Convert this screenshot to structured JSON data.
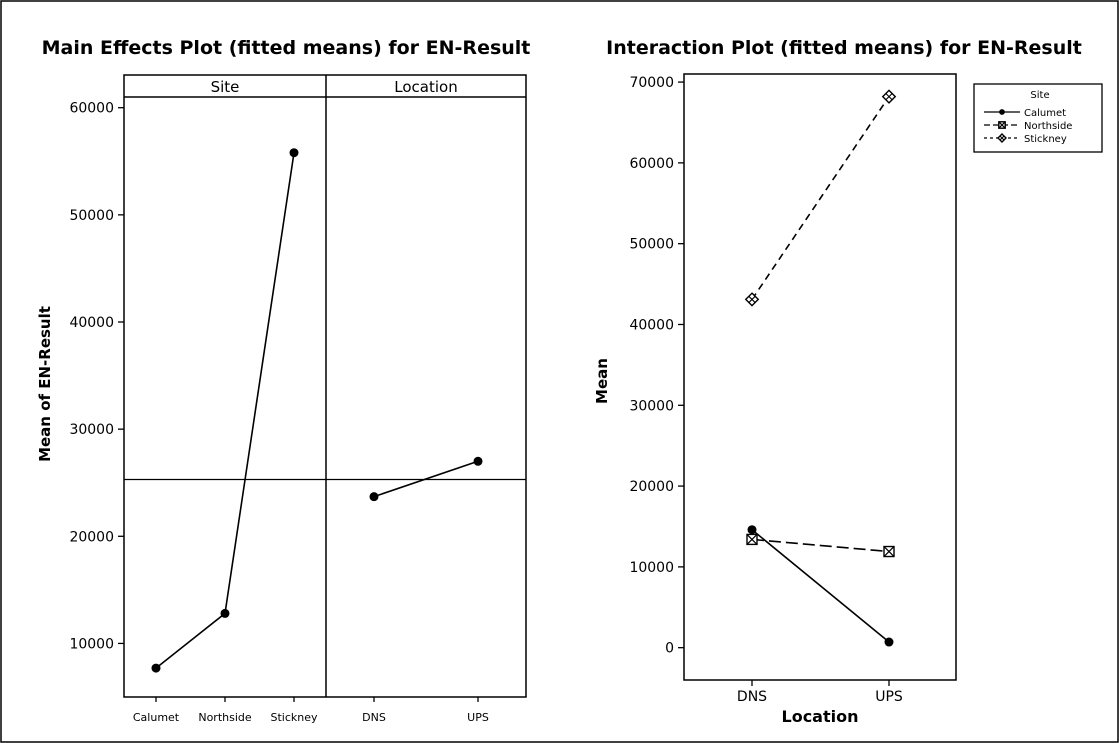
{
  "chart_data": [
    {
      "type": "line",
      "title": "Main Effects Plot (fitted means) for EN-Result",
      "ylabel": "Mean of EN-Result",
      "ylim": [
        5000,
        61000
      ],
      "yticks": [
        10000,
        20000,
        30000,
        40000,
        50000,
        60000
      ],
      "reference_line": 25300,
      "panels": [
        {
          "header": "Site",
          "categories": [
            "Calumet",
            "Northside",
            "Stickney"
          ],
          "values": [
            7700,
            12800,
            55800
          ]
        },
        {
          "header": "Location",
          "categories": [
            "DNS",
            "UPS"
          ],
          "values": [
            23700,
            27000
          ]
        }
      ]
    },
    {
      "type": "line",
      "title": "Interaction Plot (fitted means) for EN-Result",
      "xlabel": "Location",
      "ylabel": "Mean",
      "categories": [
        "DNS",
        "UPS"
      ],
      "ylim": [
        -4000,
        71000
      ],
      "yticks": [
        0,
        10000,
        20000,
        30000,
        40000,
        50000,
        60000,
        70000
      ],
      "legend_title": "Site",
      "legend_position": "top-right",
      "series": [
        {
          "name": "Calumet",
          "values": [
            14600,
            700
          ],
          "marker": "circle",
          "dash": "solid"
        },
        {
          "name": "Northside",
          "values": [
            13400,
            11900
          ],
          "marker": "square-x",
          "dash": "long-dash"
        },
        {
          "name": "Stickney",
          "values": [
            43100,
            68200
          ],
          "marker": "diamond-x",
          "dash": "short-dash"
        }
      ]
    }
  ]
}
